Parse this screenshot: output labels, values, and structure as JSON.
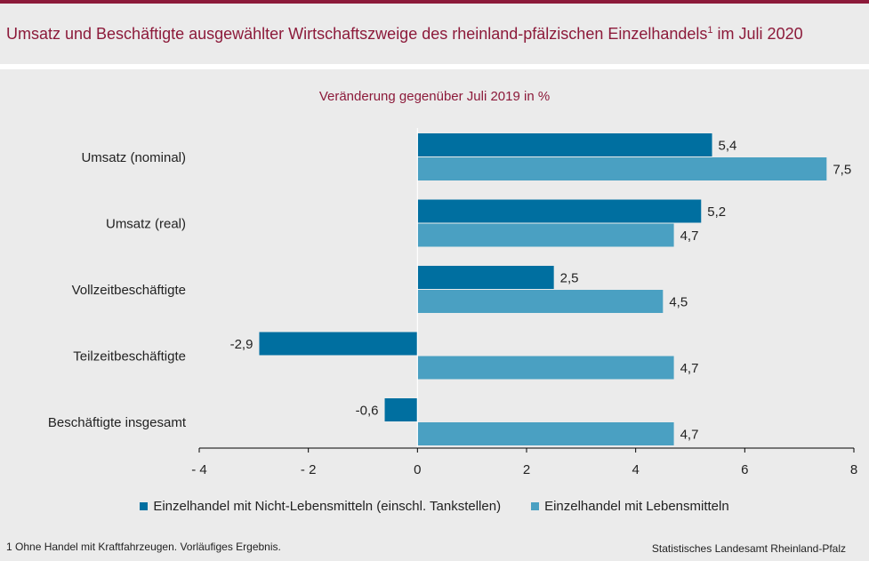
{
  "header": {
    "title": "Umsatz und Beschäftigte ausgewählter Wirtschaftszweige des rheinland-pfälzischen Einzelhandels",
    "title_sup": "1",
    "title_suffix": " im Juli 2020"
  },
  "chart_data": {
    "type": "bar",
    "orientation": "horizontal",
    "subtitle": "Veränderung gegenüber Juli 2019 in %",
    "categories": [
      "Umsatz (nominal)",
      "Umsatz (real)",
      "Vollzeitbeschäftigte",
      "Teilzeitbeschäftigte",
      "Beschäftigte insgesamt"
    ],
    "series": [
      {
        "name": "Einzelhandel mit Nicht-Lebensmitteln (einschl. Tankstellen)",
        "color": "#006fa0",
        "values": [
          5.4,
          5.2,
          2.5,
          -2.9,
          -0.6
        ],
        "labels": [
          "5,4",
          "5,2",
          "2,5",
          "-2,9",
          "-0,6"
        ]
      },
      {
        "name": "Einzelhandel mit Lebensmitteln",
        "color": "#4aa0c2",
        "values": [
          7.5,
          4.7,
          4.5,
          4.7,
          4.7
        ],
        "labels": [
          "7,5",
          "4,7",
          "4,5",
          "4,7",
          "4,7"
        ]
      }
    ],
    "xlim": [
      -4,
      8
    ],
    "xticks": [
      -4,
      -2,
      0,
      2,
      4,
      6,
      8
    ],
    "xtick_labels": [
      "- 4",
      "- 2",
      "0",
      "2",
      "4",
      "6",
      "8"
    ],
    "grid": false,
    "legend_position": "bottom"
  },
  "footer": {
    "footnote": "1 Ohne Handel mit Kraftfahrzeugen. Vorläufiges Ergebnis.",
    "source": "Statistisches Landesamt Rheinland-Pfalz"
  }
}
